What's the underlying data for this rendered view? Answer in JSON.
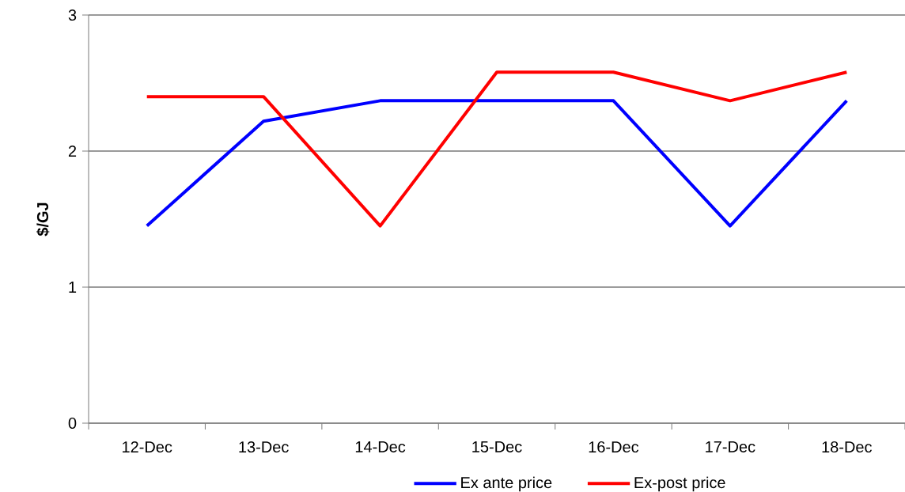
{
  "chart_data": {
    "type": "line",
    "ylabel": "$/GJ",
    "categories": [
      "12-Dec",
      "13-Dec",
      "14-Dec",
      "15-Dec",
      "16-Dec",
      "17-Dec",
      "18-Dec"
    ],
    "series": [
      {
        "name": "Ex ante price",
        "color": "#0000ff",
        "values": [
          1.45,
          2.22,
          2.37,
          2.37,
          2.37,
          1.45,
          2.37
        ]
      },
      {
        "name": "Ex-post price",
        "color": "#ff0000",
        "values": [
          2.4,
          2.4,
          1.45,
          2.58,
          2.58,
          2.37,
          2.58
        ]
      }
    ],
    "ylim": [
      0,
      3
    ],
    "yticks": [
      0,
      1,
      2,
      3
    ],
    "grid": "y",
    "legend": "bottom"
  }
}
